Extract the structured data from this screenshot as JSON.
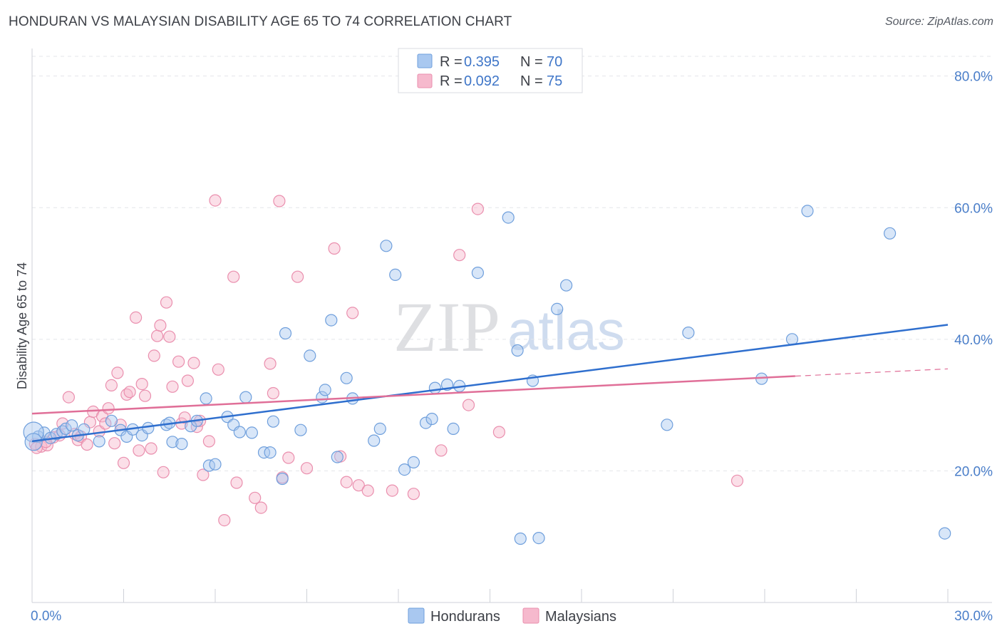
{
  "header": {
    "title": "HONDURAN VS MALAYSIAN DISABILITY AGE 65 TO 74 CORRELATION CHART",
    "source": "Source: ZipAtlas.com"
  },
  "watermark": {
    "zip": "ZIP",
    "atlas": "atlas"
  },
  "legend_top": {
    "rows": [
      {
        "r_label": "R = ",
        "r_value": "0.395",
        "n_label": "N = ",
        "n_value": "70"
      },
      {
        "r_label": "R = ",
        "r_value": "0.092",
        "n_label": "N = ",
        "n_value": "75"
      }
    ]
  },
  "legend_bottom": {
    "items": [
      "Hondurans",
      "Malaysians"
    ]
  },
  "colors": {
    "blue_fill": "#a9c8f0",
    "blue_stroke": "#6f9fdc",
    "blue_line": "#2f6fce",
    "pink_fill": "#f6b9cd",
    "pink_stroke": "#ea8fae",
    "pink_line": "#e06f98",
    "grid": "#e3e5e9",
    "axis_label": "#4a7ec9"
  },
  "chart_data": {
    "type": "scatter",
    "title": "HONDURAN VS MALAYSIAN DISABILITY AGE 65 TO 74 CORRELATION CHART",
    "xlabel": "",
    "ylabel": "Disability Age 65 to 74",
    "xlim": [
      0,
      30
    ],
    "ylim": [
      0,
      83
    ],
    "x_tick_labels": [
      "0.0%",
      "30.0%"
    ],
    "y_ticks": [
      20,
      40,
      60,
      80
    ],
    "y_tick_labels": [
      "20.0%",
      "40.0%",
      "60.0%",
      "80.0%"
    ],
    "legend_position": "top-center",
    "series": [
      {
        "name": "Hondurans",
        "R": 0.395,
        "N": 70,
        "trend": {
          "x": [
            0,
            30
          ],
          "y": [
            24.5,
            42.2
          ],
          "dashed_to": null
        },
        "points": [
          [
            0.2,
            25.2
          ],
          [
            0.4,
            25.8
          ],
          [
            0.6,
            25.0
          ],
          [
            0.8,
            25.6
          ],
          [
            1.0,
            26.0
          ],
          [
            1.1,
            26.4
          ],
          [
            1.3,
            26.9
          ],
          [
            1.5,
            25.4
          ],
          [
            1.7,
            26.3
          ],
          [
            2.2,
            24.5
          ],
          [
            2.6,
            27.6
          ],
          [
            2.9,
            26.2
          ],
          [
            3.1,
            25.2
          ],
          [
            3.3,
            26.3
          ],
          [
            3.6,
            25.4
          ],
          [
            3.8,
            26.5
          ],
          [
            4.4,
            27.0
          ],
          [
            4.5,
            27.3
          ],
          [
            4.6,
            24.4
          ],
          [
            4.9,
            24.1
          ],
          [
            5.2,
            26.8
          ],
          [
            5.4,
            27.6
          ],
          [
            5.7,
            31.0
          ],
          [
            5.8,
            20.8
          ],
          [
            6.0,
            21.0
          ],
          [
            6.4,
            28.2
          ],
          [
            6.6,
            27.0
          ],
          [
            6.8,
            25.9
          ],
          [
            7.0,
            31.2
          ],
          [
            7.2,
            25.8
          ],
          [
            7.6,
            22.8
          ],
          [
            7.8,
            22.8
          ],
          [
            7.9,
            27.5
          ],
          [
            8.2,
            18.8
          ],
          [
            8.3,
            40.9
          ],
          [
            8.8,
            26.2
          ],
          [
            9.1,
            37.5
          ],
          [
            9.5,
            31.2
          ],
          [
            9.6,
            32.3
          ],
          [
            9.8,
            42.9
          ],
          [
            10.0,
            22.1
          ],
          [
            10.3,
            34.1
          ],
          [
            10.5,
            31.0
          ],
          [
            11.2,
            24.6
          ],
          [
            11.4,
            26.4
          ],
          [
            11.6,
            54.2
          ],
          [
            11.9,
            49.8
          ],
          [
            12.2,
            20.2
          ],
          [
            12.5,
            21.3
          ],
          [
            12.9,
            27.3
          ],
          [
            13.1,
            27.9
          ],
          [
            13.2,
            32.6
          ],
          [
            13.6,
            33.1
          ],
          [
            13.8,
            26.4
          ],
          [
            14.0,
            32.9
          ],
          [
            14.6,
            50.1
          ],
          [
            15.6,
            58.5
          ],
          [
            15.9,
            38.3
          ],
          [
            16.0,
            9.7
          ],
          [
            16.4,
            33.7
          ],
          [
            16.6,
            9.8
          ],
          [
            17.2,
            44.6
          ],
          [
            17.5,
            48.2
          ],
          [
            20.8,
            27.0
          ],
          [
            21.5,
            41.0
          ],
          [
            23.9,
            34.0
          ],
          [
            24.9,
            40.0
          ],
          [
            25.4,
            59.5
          ],
          [
            28.1,
            56.1
          ],
          [
            29.9,
            10.5
          ]
        ]
      },
      {
        "name": "Malaysians",
        "R": 0.092,
        "N": 75,
        "trend": {
          "x": [
            0,
            25.0
          ],
          "y": [
            28.7,
            34.4
          ],
          "dashed_to": [
            30,
            35.5
          ]
        },
        "points": [
          [
            0.1,
            24.1
          ],
          [
            0.3,
            23.7
          ],
          [
            0.5,
            23.9
          ],
          [
            0.7,
            25.1
          ],
          [
            0.9,
            25.4
          ],
          [
            1.0,
            27.2
          ],
          [
            1.2,
            31.2
          ],
          [
            1.4,
            25.6
          ],
          [
            1.5,
            24.7
          ],
          [
            1.6,
            25.2
          ],
          [
            1.8,
            24.0
          ],
          [
            1.9,
            27.4
          ],
          [
            2.0,
            29.0
          ],
          [
            2.2,
            26.0
          ],
          [
            2.3,
            28.3
          ],
          [
            2.4,
            27.2
          ],
          [
            2.5,
            29.5
          ],
          [
            2.6,
            33.0
          ],
          [
            2.7,
            24.2
          ],
          [
            2.8,
            34.9
          ],
          [
            2.9,
            27.0
          ],
          [
            3.0,
            21.2
          ],
          [
            3.1,
            31.6
          ],
          [
            3.2,
            32.0
          ],
          [
            3.4,
            43.3
          ],
          [
            3.5,
            23.1
          ],
          [
            3.6,
            33.2
          ],
          [
            3.7,
            31.4
          ],
          [
            3.9,
            23.4
          ],
          [
            4.0,
            37.5
          ],
          [
            4.1,
            40.5
          ],
          [
            4.2,
            42.1
          ],
          [
            4.3,
            19.8
          ],
          [
            4.4,
            45.6
          ],
          [
            4.5,
            40.4
          ],
          [
            4.6,
            32.8
          ],
          [
            4.8,
            36.6
          ],
          [
            4.9,
            27.2
          ],
          [
            5.0,
            28.1
          ],
          [
            5.1,
            33.7
          ],
          [
            5.3,
            36.4
          ],
          [
            5.4,
            26.7
          ],
          [
            5.5,
            27.6
          ],
          [
            5.6,
            19.4
          ],
          [
            5.8,
            24.5
          ],
          [
            6.0,
            61.1
          ],
          [
            6.1,
            35.4
          ],
          [
            6.3,
            12.5
          ],
          [
            6.6,
            49.5
          ],
          [
            6.7,
            18.2
          ],
          [
            7.3,
            15.9
          ],
          [
            7.5,
            14.4
          ],
          [
            7.8,
            36.3
          ],
          [
            7.9,
            31.8
          ],
          [
            8.1,
            61.0
          ],
          [
            8.2,
            19.0
          ],
          [
            8.4,
            22.0
          ],
          [
            8.7,
            49.5
          ],
          [
            9.0,
            20.4
          ],
          [
            9.9,
            53.8
          ],
          [
            10.1,
            22.2
          ],
          [
            10.3,
            18.3
          ],
          [
            10.5,
            44.0
          ],
          [
            10.7,
            17.8
          ],
          [
            11.0,
            17.0
          ],
          [
            11.8,
            17.0
          ],
          [
            12.5,
            16.5
          ],
          [
            13.4,
            23.1
          ],
          [
            14.0,
            52.8
          ],
          [
            14.3,
            30.0
          ],
          [
            14.6,
            59.8
          ],
          [
            15.3,
            25.9
          ],
          [
            23.1,
            18.5
          ],
          [
            0.15,
            23.5
          ],
          [
            0.45,
            24.4
          ]
        ]
      }
    ]
  }
}
